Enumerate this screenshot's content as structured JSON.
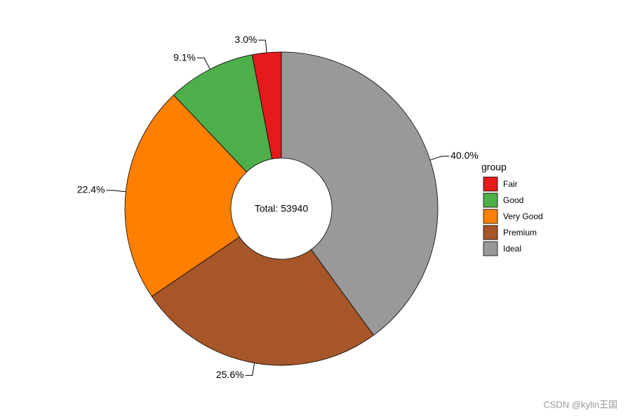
{
  "chart_data": {
    "type": "donut",
    "center_label": "Total: 53940",
    "categories": [
      "Fair",
      "Good",
      "Very Good",
      "Premium",
      "Ideal"
    ],
    "values": [
      3.0,
      9.1,
      22.4,
      25.6,
      40.0
    ],
    "value_labels": [
      "3.0%",
      "9.1%",
      "22.4%",
      "25.6%",
      "40.0%"
    ],
    "colors": [
      "#e41a1c",
      "#4daf4a",
      "#ff7f00",
      "#a65628",
      "#999999"
    ],
    "legend_title": "group",
    "legend": "right"
  },
  "watermark": "CSDN @kylin王国"
}
